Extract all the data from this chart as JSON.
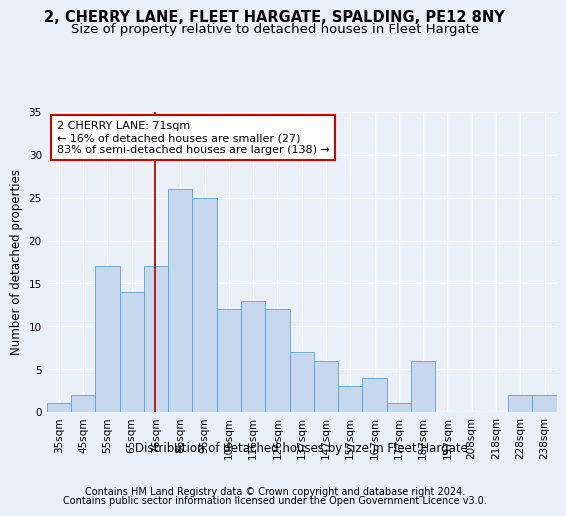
{
  "title": "2, CHERRY LANE, FLEET HARGATE, SPALDING, PE12 8NY",
  "subtitle": "Size of property relative to detached houses in Fleet Hargate",
  "xlabel": "Distribution of detached houses by size in Fleet Hargate",
  "ylabel": "Number of detached properties",
  "categories": [
    "35sqm",
    "45sqm",
    "55sqm",
    "65sqm",
    "76sqm",
    "86sqm",
    "96sqm",
    "106sqm",
    "116sqm",
    "126sqm",
    "137sqm",
    "147sqm",
    "157sqm",
    "167sqm",
    "177sqm",
    "187sqm",
    "197sqm",
    "208sqm",
    "218sqm",
    "228sqm",
    "238sqm"
  ],
  "values": [
    1,
    2,
    17,
    14,
    17,
    26,
    25,
    12,
    13,
    12,
    7,
    6,
    3,
    4,
    1,
    6,
    0,
    0,
    0,
    2,
    2
  ],
  "bar_color": "#c5d8ed",
  "bar_edge_color": "#5a9fd4",
  "red_line_x": 3.95,
  "annotation_line1": "2 CHERRY LANE: 71sqm",
  "annotation_line2": "← 16% of detached houses are smaller (27)",
  "annotation_line3": "83% of semi-detached houses are larger (138) →",
  "annotation_box_color": "#ffffff",
  "annotation_box_edge_color": "#cc0000",
  "ylim": [
    0,
    35
  ],
  "yticks": [
    0,
    5,
    10,
    15,
    20,
    25,
    30,
    35
  ],
  "footer1": "Contains HM Land Registry data © Crown copyright and database right 2024.",
  "footer2": "Contains public sector information licensed under the Open Government Licence v3.0.",
  "bg_color": "#eaf0f8",
  "plot_bg_color": "#eaf0f8",
  "grid_color": "#ffffff",
  "title_fontsize": 10.5,
  "subtitle_fontsize": 9.5,
  "axis_label_fontsize": 8.5,
  "tick_fontsize": 7.5,
  "annotation_fontsize": 8,
  "footer_fontsize": 7
}
